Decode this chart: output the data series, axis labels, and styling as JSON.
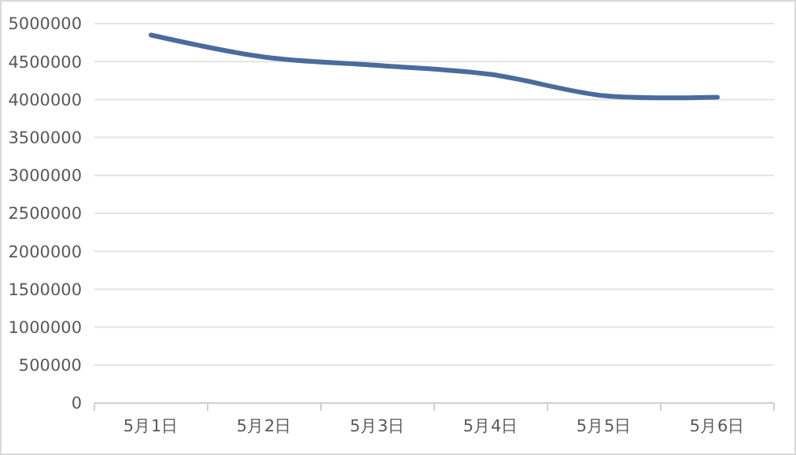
{
  "chart_data": {
    "type": "line",
    "categories": [
      "5月1日",
      "5月2日",
      "5月3日",
      "5月4日",
      "5月5日",
      "5月6日"
    ],
    "series": [
      {
        "color": "#4a6b9c",
        "values": [
          4850000,
          4560000,
          4450000,
          4330000,
          4050000,
          4030000
        ]
      }
    ],
    "ylim": [
      0,
      5000000
    ],
    "yticks": [
      0,
      500000,
      1000000,
      1500000,
      2000000,
      2500000,
      3000000,
      3500000,
      4000000,
      4500000,
      5000000
    ],
    "grid": "y",
    "marker": "none",
    "line_style": "solid"
  }
}
